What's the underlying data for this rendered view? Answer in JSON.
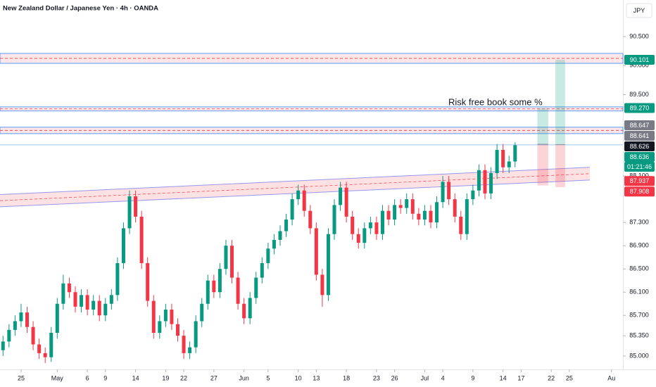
{
  "chart_data": {
    "type": "candlestick",
    "title": "New Zealand Dollar / Japanese Yen · 4h · OANDA",
    "currency": "JPY",
    "up_color": "#089981",
    "down_color": "#f23645",
    "xlim": [
      -3.5,
      99.9
    ],
    "ylim": [
      84.77,
      91.13
    ],
    "xticks": [
      {
        "value": 0,
        "label": "25"
      },
      {
        "value": 6,
        "label": "May"
      },
      {
        "value": 11,
        "label": "6"
      },
      {
        "value": 14,
        "label": "9"
      },
      {
        "value": 19,
        "label": "14"
      },
      {
        "value": 24,
        "label": "19"
      },
      {
        "value": 27,
        "label": "22"
      },
      {
        "value": 32,
        "label": "27"
      },
      {
        "value": 37,
        "label": "Jun"
      },
      {
        "value": 41,
        "label": "5"
      },
      {
        "value": 46,
        "label": "10"
      },
      {
        "value": 49,
        "label": "13"
      },
      {
        "value": 54,
        "label": "18"
      },
      {
        "value": 59,
        "label": "23"
      },
      {
        "value": 62,
        "label": "26"
      },
      {
        "value": 67,
        "label": "Jul"
      },
      {
        "value": 70,
        "label": "4"
      },
      {
        "value": 75,
        "label": "9"
      },
      {
        "value": 80,
        "label": "14"
      },
      {
        "value": 83,
        "label": "17"
      },
      {
        "value": 88,
        "label": "22"
      },
      {
        "value": 91,
        "label": "25"
      },
      {
        "value": 98,
        "label": "Au"
      }
    ],
    "yticks": [
      {
        "value": 90.5,
        "label": "90.500"
      },
      {
        "value": 90.0,
        "label": "90.000"
      },
      {
        "value": 89.5,
        "label": "89.500"
      },
      {
        "value": 88.1,
        "label": "88.100"
      },
      {
        "value": 87.3,
        "label": "87.300"
      },
      {
        "value": 86.9,
        "label": "86.900"
      },
      {
        "value": 86.5,
        "label": "86.500"
      },
      {
        "value": 86.1,
        "label": "86.100"
      },
      {
        "value": 85.7,
        "label": "85.700"
      },
      {
        "value": 85.35,
        "label": "85.350"
      },
      {
        "value": 85.0,
        "label": "85.000"
      }
    ],
    "x": [
      -3,
      -2,
      -1,
      0,
      1,
      2,
      3,
      4,
      5,
      6,
      7,
      8,
      9,
      10,
      11,
      12,
      13,
      14,
      15,
      16,
      17,
      18,
      19,
      20,
      21,
      22,
      23,
      24,
      25,
      26,
      27,
      28,
      29,
      30,
      31,
      32,
      33,
      34,
      35,
      36,
      37,
      38,
      39,
      40,
      41,
      42,
      43,
      44,
      45,
      46,
      47,
      48,
      49,
      50,
      51,
      52,
      53,
      54,
      55,
      56,
      57,
      58,
      59,
      60,
      61,
      62,
      63,
      64,
      65,
      66,
      67,
      68,
      69,
      70,
      71,
      72,
      73,
      74,
      75,
      76,
      77,
      78,
      79,
      80,
      81,
      82
    ],
    "open": [
      85.1,
      85.25,
      85.45,
      85.6,
      85.75,
      85.5,
      85.2,
      85.05,
      84.98,
      85.4,
      85.9,
      86.25,
      86.1,
      85.85,
      86.05,
      85.8,
      85.95,
      85.7,
      85.9,
      86.05,
      86.6,
      87.2,
      87.75,
      87.4,
      86.6,
      85.95,
      85.4,
      85.6,
      85.8,
      85.55,
      85.35,
      85.05,
      85.15,
      85.6,
      85.9,
      86.3,
      86.1,
      86.5,
      86.9,
      86.35,
      85.9,
      85.65,
      86.0,
      86.35,
      86.6,
      86.85,
      87.0,
      87.15,
      87.35,
      87.7,
      87.85,
      87.5,
      87.2,
      86.4,
      86.05,
      87.1,
      87.6,
      87.9,
      87.4,
      87.1,
      86.95,
      87.2,
      87.3,
      87.1,
      87.5,
      87.35,
      87.6,
      87.55,
      87.7,
      87.45,
      87.35,
      87.5,
      87.3,
      87.65,
      88.0,
      87.7,
      87.4,
      87.1,
      87.7,
      87.85,
      88.2,
      87.8,
      88.15,
      88.55,
      88.25,
      88.35
    ],
    "high": [
      85.35,
      85.55,
      85.7,
      85.9,
      85.85,
      85.6,
      85.3,
      85.15,
      85.5,
      86.0,
      86.4,
      86.35,
      86.2,
      86.15,
      86.15,
      86.05,
      86.05,
      86.0,
      86.15,
      86.7,
      87.3,
      87.85,
      87.85,
      87.5,
      86.7,
      86.05,
      85.7,
      85.9,
      85.9,
      85.65,
      85.45,
      85.25,
      85.7,
      86.0,
      86.4,
      86.4,
      86.6,
      87.0,
      87.0,
      86.45,
      86.0,
      86.1,
      86.45,
      86.7,
      86.95,
      87.1,
      87.25,
      87.45,
      87.8,
      87.95,
      87.95,
      87.6,
      87.3,
      86.5,
      87.2,
      87.7,
      88.0,
      88.0,
      87.5,
      87.2,
      87.3,
      87.4,
      87.4,
      87.6,
      87.6,
      87.7,
      87.7,
      87.8,
      87.8,
      87.55,
      87.6,
      87.6,
      87.75,
      88.1,
      88.1,
      87.8,
      87.5,
      87.8,
      87.95,
      88.3,
      88.3,
      88.25,
      88.65,
      88.65,
      88.45,
      88.68
    ],
    "low": [
      85.0,
      85.15,
      85.35,
      85.5,
      85.4,
      85.1,
      84.95,
      84.88,
      84.9,
      85.3,
      85.8,
      86.0,
      85.75,
      85.75,
      85.7,
      85.7,
      85.6,
      85.6,
      85.8,
      85.95,
      86.5,
      87.1,
      87.3,
      86.5,
      85.85,
      85.3,
      85.3,
      85.5,
      85.45,
      85.25,
      84.95,
      84.95,
      85.05,
      85.5,
      85.8,
      86.0,
      86.0,
      86.4,
      86.25,
      85.8,
      85.55,
      85.55,
      85.9,
      86.25,
      86.5,
      86.75,
      86.9,
      87.05,
      87.25,
      87.6,
      87.4,
      87.1,
      86.3,
      85.85,
      85.95,
      87.0,
      87.5,
      87.3,
      87.0,
      86.85,
      86.85,
      87.1,
      87.0,
      87.0,
      87.25,
      87.25,
      87.45,
      87.45,
      87.35,
      87.25,
      87.25,
      87.2,
      87.2,
      87.55,
      87.6,
      87.3,
      87.0,
      87.0,
      87.6,
      87.75,
      87.7,
      87.7,
      88.05,
      88.15,
      88.15,
      88.25
    ],
    "close": [
      85.25,
      85.45,
      85.6,
      85.75,
      85.5,
      85.2,
      85.05,
      84.98,
      85.4,
      85.9,
      86.25,
      86.1,
      85.85,
      86.05,
      85.8,
      85.95,
      85.7,
      85.9,
      86.05,
      86.6,
      87.2,
      87.75,
      87.4,
      86.6,
      85.95,
      85.4,
      85.6,
      85.8,
      85.55,
      85.35,
      85.05,
      85.15,
      85.6,
      85.9,
      86.3,
      86.1,
      86.5,
      86.9,
      86.35,
      85.9,
      85.65,
      86.0,
      86.35,
      86.6,
      86.85,
      87.0,
      87.15,
      87.35,
      87.7,
      87.85,
      87.5,
      87.2,
      86.4,
      86.05,
      87.1,
      87.6,
      87.9,
      87.4,
      87.1,
      86.95,
      87.2,
      87.3,
      87.1,
      87.5,
      87.35,
      87.6,
      87.55,
      87.7,
      87.45,
      87.35,
      87.5,
      87.3,
      87.65,
      88.0,
      87.7,
      87.4,
      87.1,
      87.7,
      87.85,
      88.2,
      87.8,
      88.15,
      88.55,
      88.25,
      88.35,
      88.63
    ],
    "zones": [
      {
        "top": 90.21,
        "bottom": 90.04
      },
      {
        "top": 89.29,
        "bottom": 89.22
      },
      {
        "top": 88.94,
        "bottom": 88.83
      }
    ],
    "trend_channel": {
      "x": [
        -3.5,
        94.4
      ],
      "top": [
        87.78,
        88.25
      ],
      "bottom": [
        87.57,
        88.03
      ]
    },
    "positions": [
      {
        "x": [
          85.7,
          87.5
        ],
        "entry": 88.647,
        "target": 89.27,
        "stop": 87.937
      },
      {
        "x": [
          88.7,
          90.3
        ],
        "entry": 88.641,
        "target": 90.101,
        "stop": 87.908
      }
    ],
    "current_price": 88.636,
    "annotation": "Risk free book some %",
    "price_labels": [
      {
        "value": 90.101,
        "label": "90.101",
        "color": "#089981"
      },
      {
        "value": 89.27,
        "label": "89.270",
        "color": "#089981"
      },
      {
        "value": 88.647,
        "label": "88.647",
        "color": "#787b86"
      },
      {
        "value": 88.641,
        "label": "88.641",
        "color": "#787b86"
      },
      {
        "value": 88.636,
        "label": "88.636",
        "color": "#089981",
        "countdown": "01:21:46"
      },
      {
        "value": 88.626,
        "label": "88.626",
        "color": "#131722"
      },
      {
        "value": 87.937,
        "label": "87.937",
        "color": "#f23645"
      },
      {
        "value": 87.908,
        "label": "87.908",
        "color": "#f23645"
      }
    ]
  }
}
